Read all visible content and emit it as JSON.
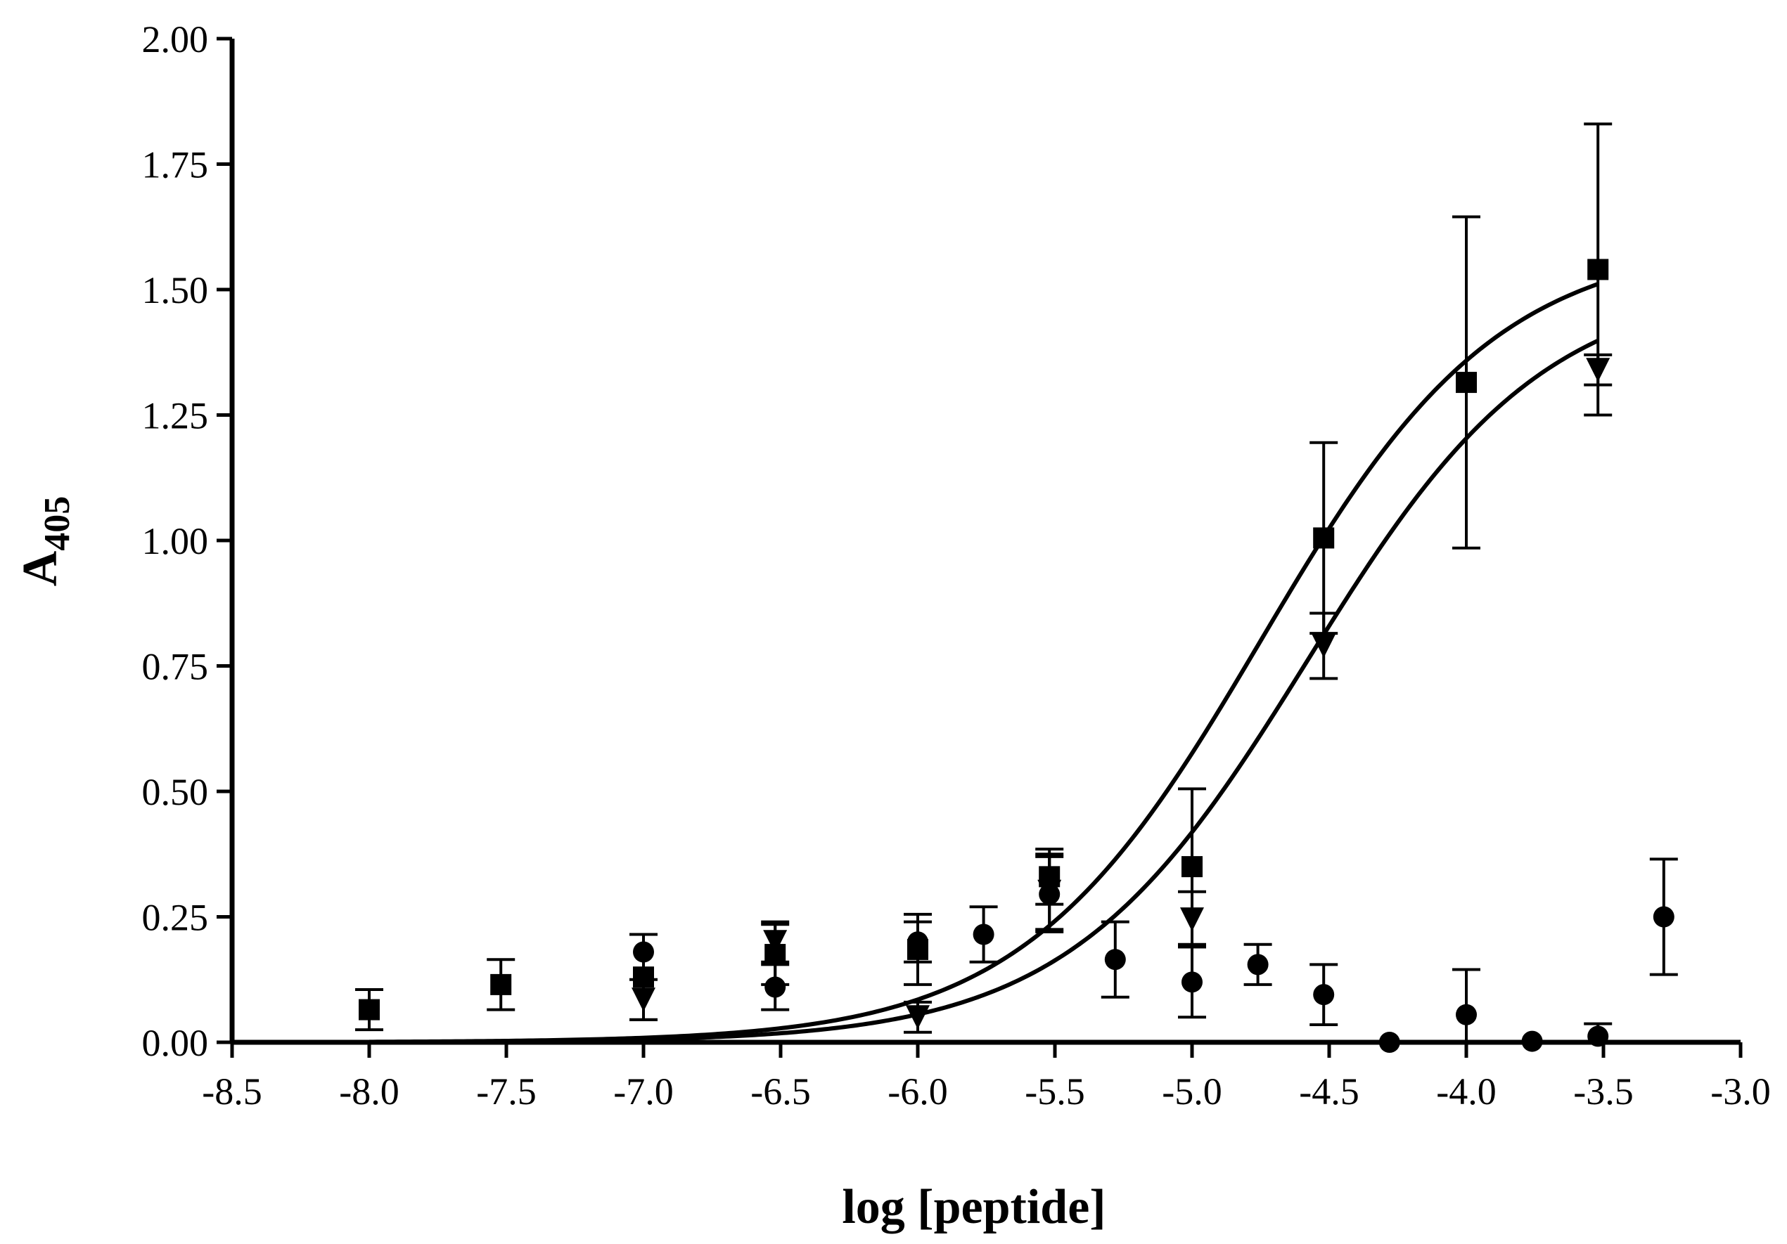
{
  "chart_data": {
    "type": "scatter",
    "xlabel": "log [peptide]",
    "ylabel": "A",
    "ylabel_subscript": "405",
    "xlim": [
      -8.5,
      -3.0
    ],
    "ylim": [
      0.0,
      2.0
    ],
    "x_ticks": [
      "-8.5",
      "-8.0",
      "-7.5",
      "-7.0",
      "-6.5",
      "-6.0",
      "-5.5",
      "-5.0",
      "-4.5",
      "-4.0",
      "-3.5",
      "-3.0"
    ],
    "y_ticks": [
      "0.00",
      "0.25",
      "0.50",
      "0.75",
      "1.00",
      "1.25",
      "1.50",
      "1.75",
      "2.00"
    ],
    "grid": false,
    "series": [
      {
        "marker": "square",
        "points": [
          {
            "x": -8.0,
            "y": 0.065,
            "err": 0.04
          },
          {
            "x": -7.52,
            "y": 0.115,
            "err": 0.05
          },
          {
            "x": -7.0,
            "y": 0.13,
            "err": 0.085
          },
          {
            "x": -6.52,
            "y": 0.175,
            "err": 0.06
          },
          {
            "x": -6.0,
            "y": 0.185,
            "err": 0.07
          },
          {
            "x": -5.52,
            "y": 0.33,
            "err": 0.055
          },
          {
            "x": -5.0,
            "y": 0.35,
            "err": 0.155
          },
          {
            "x": -4.52,
            "y": 1.005,
            "err": 0.19
          },
          {
            "x": -4.0,
            "y": 1.315,
            "err": 0.33
          },
          {
            "x": -3.52,
            "y": 1.54,
            "err": 0.29
          }
        ],
        "fit": {
          "bottom": 0.0,
          "top": 1.6,
          "logec50": -4.75,
          "hill": 1.0
        }
      },
      {
        "marker": "triangle-down",
        "points": [
          {
            "x": -7.0,
            "y": 0.085,
            "err": 0.04
          },
          {
            "x": -6.52,
            "y": 0.2,
            "err": 0.04
          },
          {
            "x": -6.0,
            "y": 0.05,
            "err": 0.03
          },
          {
            "x": -5.52,
            "y": 0.3,
            "err": 0.075
          },
          {
            "x": -5.0,
            "y": 0.245,
            "err": 0.055
          },
          {
            "x": -4.52,
            "y": 0.79,
            "err": 0.065
          },
          {
            "x": -3.52,
            "y": 1.34,
            "err": 0.03
          }
        ],
        "fit": {
          "bottom": 0.0,
          "top": 1.52,
          "logec50": -4.58,
          "hill": 1.0
        }
      },
      {
        "marker": "circle",
        "points": [
          {
            "x": -7.0,
            "y": 0.18,
            "err": 0
          },
          {
            "x": -6.52,
            "y": 0.11,
            "err": 0.045
          },
          {
            "x": -6.0,
            "y": 0.2,
            "err": 0.04
          },
          {
            "x": -5.76,
            "y": 0.215,
            "err": 0.055
          },
          {
            "x": -5.52,
            "y": 0.295,
            "err": 0.075
          },
          {
            "x": -5.28,
            "y": 0.165,
            "err": 0.075
          },
          {
            "x": -5.0,
            "y": 0.12,
            "err": 0.07
          },
          {
            "x": -4.76,
            "y": 0.155,
            "err": 0.04
          },
          {
            "x": -4.52,
            "y": 0.095,
            "err": 0.06
          },
          {
            "x": -4.28,
            "y": 0.0,
            "err": 0
          },
          {
            "x": -4.0,
            "y": 0.055,
            "err": 0.09
          },
          {
            "x": -3.76,
            "y": 0.002,
            "err": 0
          },
          {
            "x": -3.52,
            "y": 0.012,
            "err": 0.025
          },
          {
            "x": -3.28,
            "y": 0.25,
            "err": 0.115
          }
        ]
      }
    ]
  }
}
